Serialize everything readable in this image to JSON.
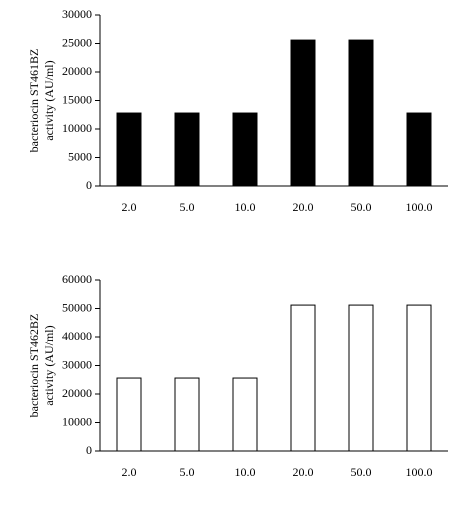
{
  "chart_data": [
    {
      "type": "bar",
      "ylabel": [
        "bacteriocin ST461BZ",
        "activity (AU/ml)"
      ],
      "categories": [
        "2.0",
        "5.0",
        "10.0",
        "20.0",
        "50.0",
        "100.0"
      ],
      "values": [
        12800,
        12800,
        12800,
        25600,
        25600,
        12800
      ],
      "color": "#000000",
      "edgecolor": "#000000",
      "ylim": [
        0,
        30000
      ],
      "yticks": [
        0,
        5000,
        10000,
        15000,
        20000,
        25000,
        30000
      ]
    },
    {
      "type": "bar",
      "ylabel": [
        "bacteriocin ST462BZ",
        "activity (AU/ml)"
      ],
      "categories": [
        "2.0",
        "5.0",
        "10.0",
        "20.0",
        "50.0",
        "100.0"
      ],
      "values": [
        25600,
        25600,
        25600,
        51200,
        51200,
        51200
      ],
      "color": "#ffffff",
      "edgecolor": "#000000",
      "ylim": [
        0,
        60000
      ],
      "yticks": [
        0,
        10000,
        20000,
        30000,
        40000,
        50000,
        60000
      ]
    }
  ]
}
